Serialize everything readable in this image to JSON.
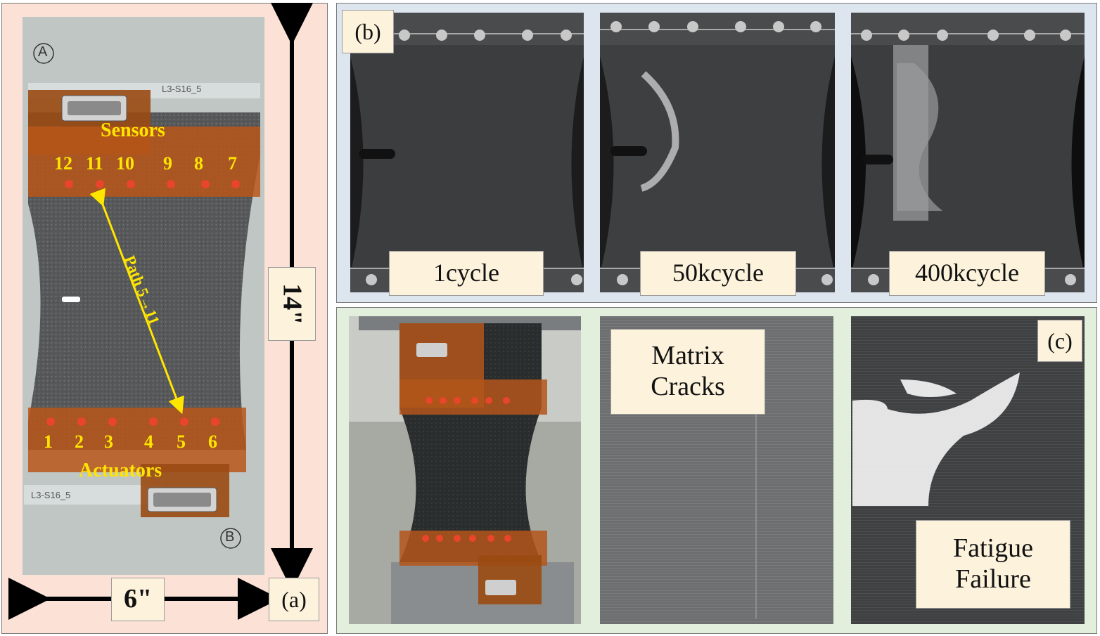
{
  "panel_a": {
    "tag": "(a)",
    "sensors_title": "Sensors",
    "actuators_title": "Actuators",
    "sensor_numbers": [
      "12",
      "11",
      "10",
      "9",
      "8",
      "7"
    ],
    "actuator_numbers": [
      "1",
      "2",
      "3",
      "4",
      "5",
      "6"
    ],
    "path_label": "Path 5→11",
    "height_label": "14\"",
    "width_label": "6\"",
    "specimen_id": "L3-S16_5",
    "marker_top": "A",
    "marker_bottom": "B"
  },
  "panel_b": {
    "tag": "(b)",
    "stages": [
      "1cycle",
      "50kcycle",
      "400kcycle"
    ]
  },
  "panel_c": {
    "tag": "(c)",
    "matrix_label": [
      "Matrix",
      "Cracks"
    ],
    "fatigue_label": [
      "Fatigue",
      "Failure"
    ]
  },
  "colors": {
    "panel_a_bg": "#fbe1d6",
    "panel_b_bg": "#dde5ef",
    "panel_c_bg": "#e2efdc",
    "label_bg": "#fdf3dc",
    "yellow": "#ffe600"
  }
}
